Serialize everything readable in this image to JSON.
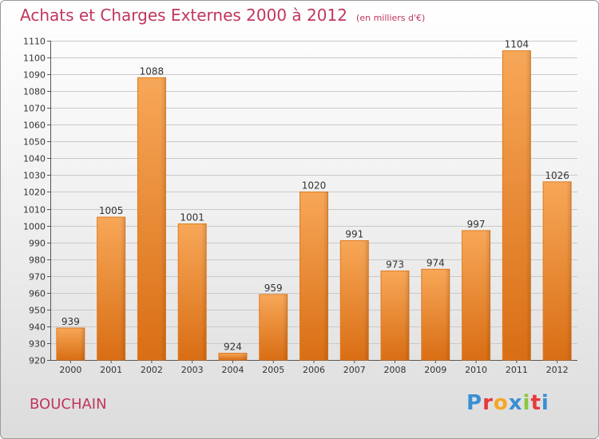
{
  "header": {
    "title": "Achats et Charges Externes 2000 à 2012",
    "unit": "(en milliers d'€)"
  },
  "commune": "BOUCHAIN",
  "logo": {
    "text": "Proxiti",
    "letters": [
      "P",
      "r",
      "o",
      "x",
      "i",
      "t",
      "i"
    ],
    "colors": [
      "#3a8fd4",
      "#e8383b",
      "#f5a623",
      "#3a8fd4",
      "#8cc63f",
      "#e8383b",
      "#3a8fd4"
    ]
  },
  "chart_data": {
    "type": "bar",
    "categories": [
      "2000",
      "2001",
      "2002",
      "2003",
      "2004",
      "2005",
      "2006",
      "2007",
      "2008",
      "2009",
      "2010",
      "2011",
      "2012"
    ],
    "values": [
      939,
      1005,
      1088,
      1001,
      924,
      959,
      1020,
      991,
      973,
      974,
      997,
      1104,
      1026
    ],
    "ylim": [
      920,
      1110
    ],
    "ytick_step": 10,
    "grid": true,
    "bar_color": "#f08a2c",
    "title": "Achats et Charges Externes 2000 à 2012",
    "xlabel": "",
    "ylabel": ""
  }
}
